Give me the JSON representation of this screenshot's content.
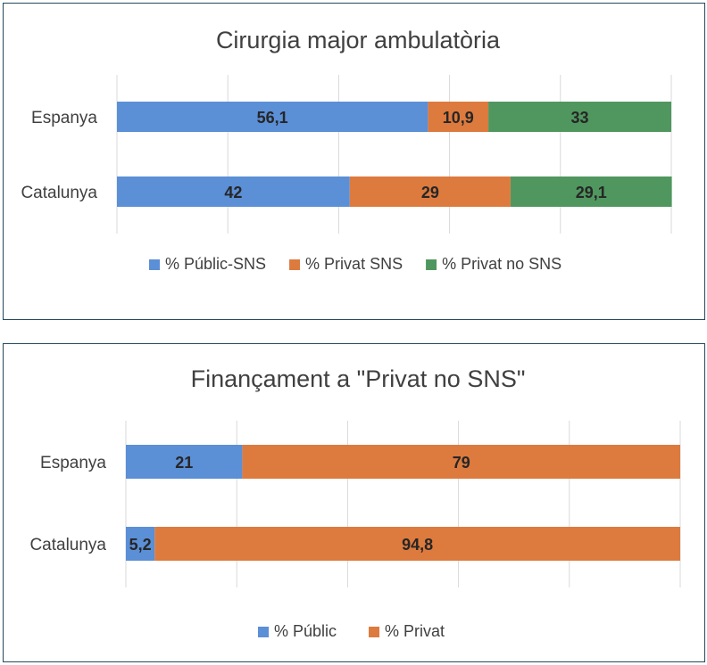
{
  "chart_data": [
    {
      "type": "bar",
      "orientation": "horizontal",
      "stacked": "percent",
      "title": "Cirurgia major ambulatòria",
      "categories": [
        "Espanya",
        "Catalunya"
      ],
      "series": [
        {
          "name": "% Públic-SNS",
          "values": [
            56.1,
            42
          ],
          "labels": [
            "56,1",
            "42"
          ],
          "color": "#5b8fd6"
        },
        {
          "name": "% Privat SNS",
          "values": [
            10.9,
            29
          ],
          "labels": [
            "10,9",
            "29"
          ],
          "color": "#dd7a3e"
        },
        {
          "name": "% Privat no SNS",
          "values": [
            33,
            29.1
          ],
          "labels": [
            "33",
            "29,1"
          ],
          "color": "#50975f"
        }
      ],
      "xlim": [
        0,
        100
      ],
      "grid": true,
      "legend": "bottom"
    },
    {
      "type": "bar",
      "orientation": "horizontal",
      "stacked": "percent",
      "title": "Finançament  a  \"Privat no SNS\"",
      "categories": [
        "Espanya",
        "Catalunya"
      ],
      "series": [
        {
          "name": "% Públic",
          "values": [
            21,
            5.2
          ],
          "labels": [
            "21",
            "5,2"
          ],
          "color": "#5b8fd6"
        },
        {
          "name": "% Privat",
          "values": [
            79,
            94.8
          ],
          "labels": [
            "79",
            "94,8"
          ],
          "color": "#dd7a3e"
        }
      ],
      "xlim": [
        0,
        100
      ],
      "grid": true,
      "legend": "bottom"
    }
  ]
}
